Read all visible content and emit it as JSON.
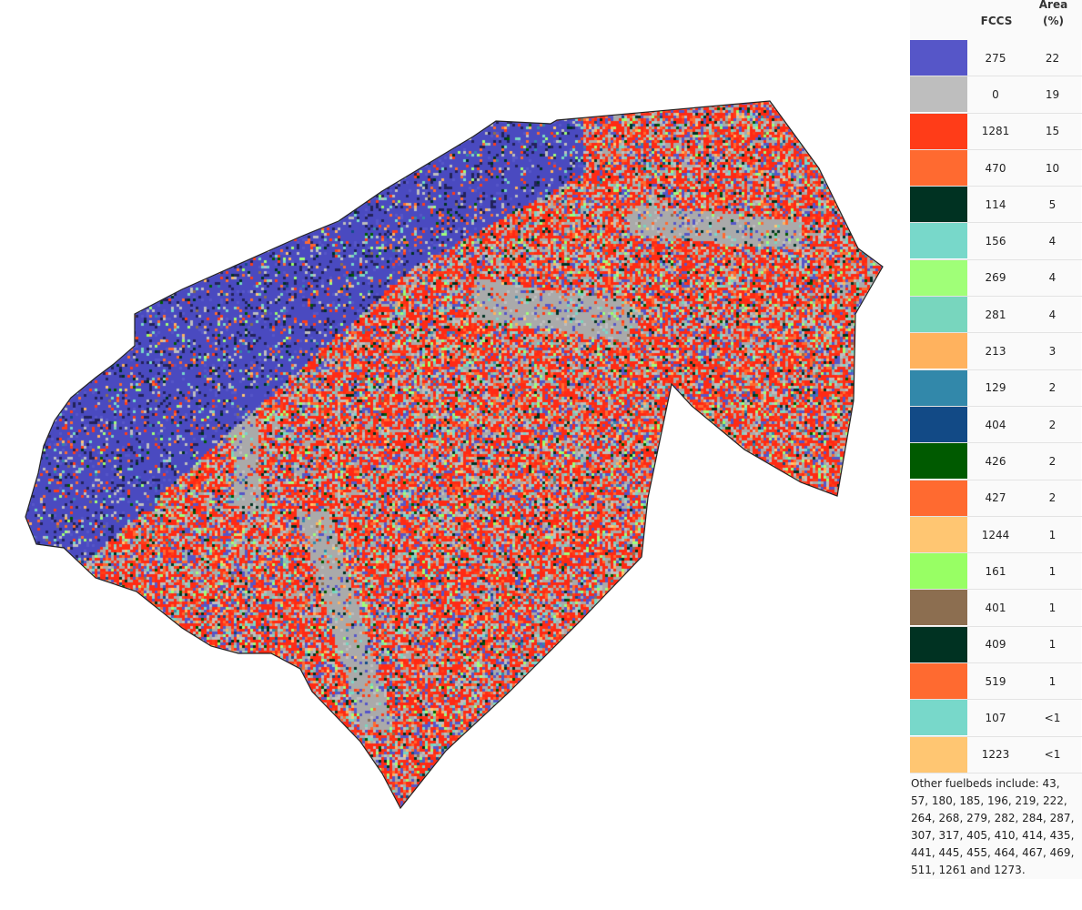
{
  "legend": {
    "header_fccs": "FCCS",
    "header_area": "Area\n(%)",
    "items": [
      {
        "fccs": "275",
        "area": "22",
        "color": "#5656c8"
      },
      {
        "fccs": "0",
        "area": "19",
        "color": "#bebebe"
      },
      {
        "fccs": "1281",
        "area": "15",
        "color": "#ff3c18"
      },
      {
        "fccs": "470",
        "area": "10",
        "color": "#ff6a30"
      },
      {
        "fccs": "114",
        "area": "5",
        "color": "#003222"
      },
      {
        "fccs": "156",
        "area": "4",
        "color": "#78d8ca"
      },
      {
        "fccs": "269",
        "area": "4",
        "color": "#a0ff78"
      },
      {
        "fccs": "281",
        "area": "4",
        "color": "#78d6be"
      },
      {
        "fccs": "213",
        "area": "3",
        "color": "#ffb25e"
      },
      {
        "fccs": "129",
        "area": "2",
        "color": "#3288aa"
      },
      {
        "fccs": "404",
        "area": "2",
        "color": "#124a86"
      },
      {
        "fccs": "426",
        "area": "2",
        "color": "#005a00"
      },
      {
        "fccs": "427",
        "area": "2",
        "color": "#ff6a30"
      },
      {
        "fccs": "1244",
        "area": "1",
        "color": "#ffc672"
      },
      {
        "fccs": "161",
        "area": "1",
        "color": "#98ff64"
      },
      {
        "fccs": "401",
        "area": "1",
        "color": "#8c6e50"
      },
      {
        "fccs": "409",
        "area": "1",
        "color": "#003222"
      },
      {
        "fccs": "519",
        "area": "1",
        "color": "#ff6a30"
      },
      {
        "fccs": "107",
        "area": "<1",
        "color": "#78d8ca"
      },
      {
        "fccs": "1223",
        "area": "<1",
        "color": "#ffc672"
      }
    ],
    "note": "Other fuelbeds include: 43, 57, 180, 185, 196, 219, 222, 264, 268, 279, 282, 284, 287, 307, 317, 405, 410, 414, 435, 441, 445, 455, 464, 467, 469, 511, 1261 and 1273."
  }
}
